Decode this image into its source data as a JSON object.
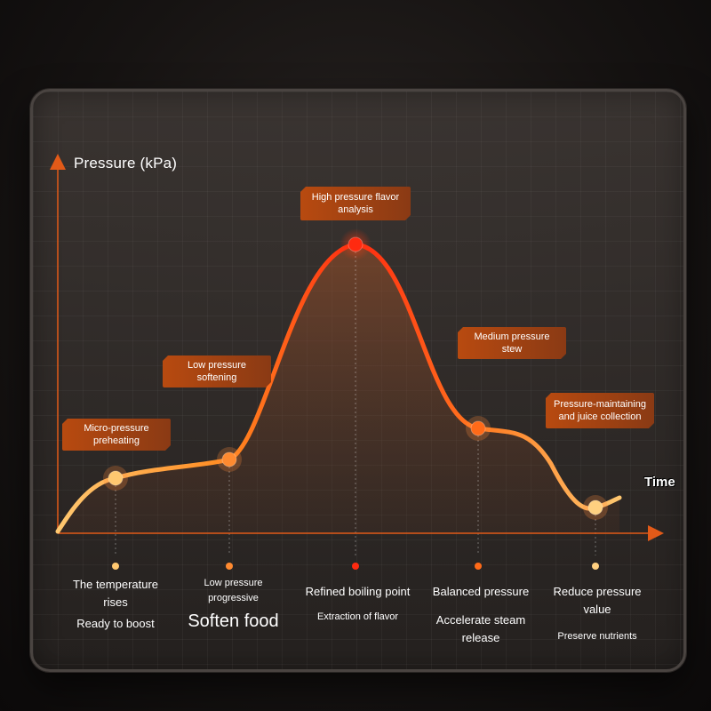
{
  "chart_data": {
    "type": "line",
    "ylabel": "Pressure (kPa)",
    "xlabel": "Time",
    "x": [
      1,
      2,
      3,
      4,
      5
    ],
    "values": [
      62,
      83,
      325,
      118,
      29
    ],
    "ylim": [
      0,
      360
    ],
    "colors": {
      "low": "#ffc870",
      "mid": "#ff7a20",
      "peak": "#ff2a10",
      "axis": "#e25a18",
      "fill": "#8a4a2a"
    },
    "callouts": [
      "Micro-pressure preheating",
      "Low pressure softening",
      "High pressure flavor analysis",
      "Medium pressure stew",
      "Pressure-maintaining and juice collection"
    ],
    "stages": [
      {
        "line1": "The temperature rises",
        "line2": "Ready to boost"
      },
      {
        "line1": "Low pressure progressive",
        "line2": "Soften food"
      },
      {
        "line1": "Refined boiling point",
        "line2": "Extraction of flavor"
      },
      {
        "line1": "Balanced pressure",
        "line2": "Accelerate steam release"
      },
      {
        "line1": "Reduce pressure value",
        "line2": "Preserve nutrients"
      }
    ]
  }
}
